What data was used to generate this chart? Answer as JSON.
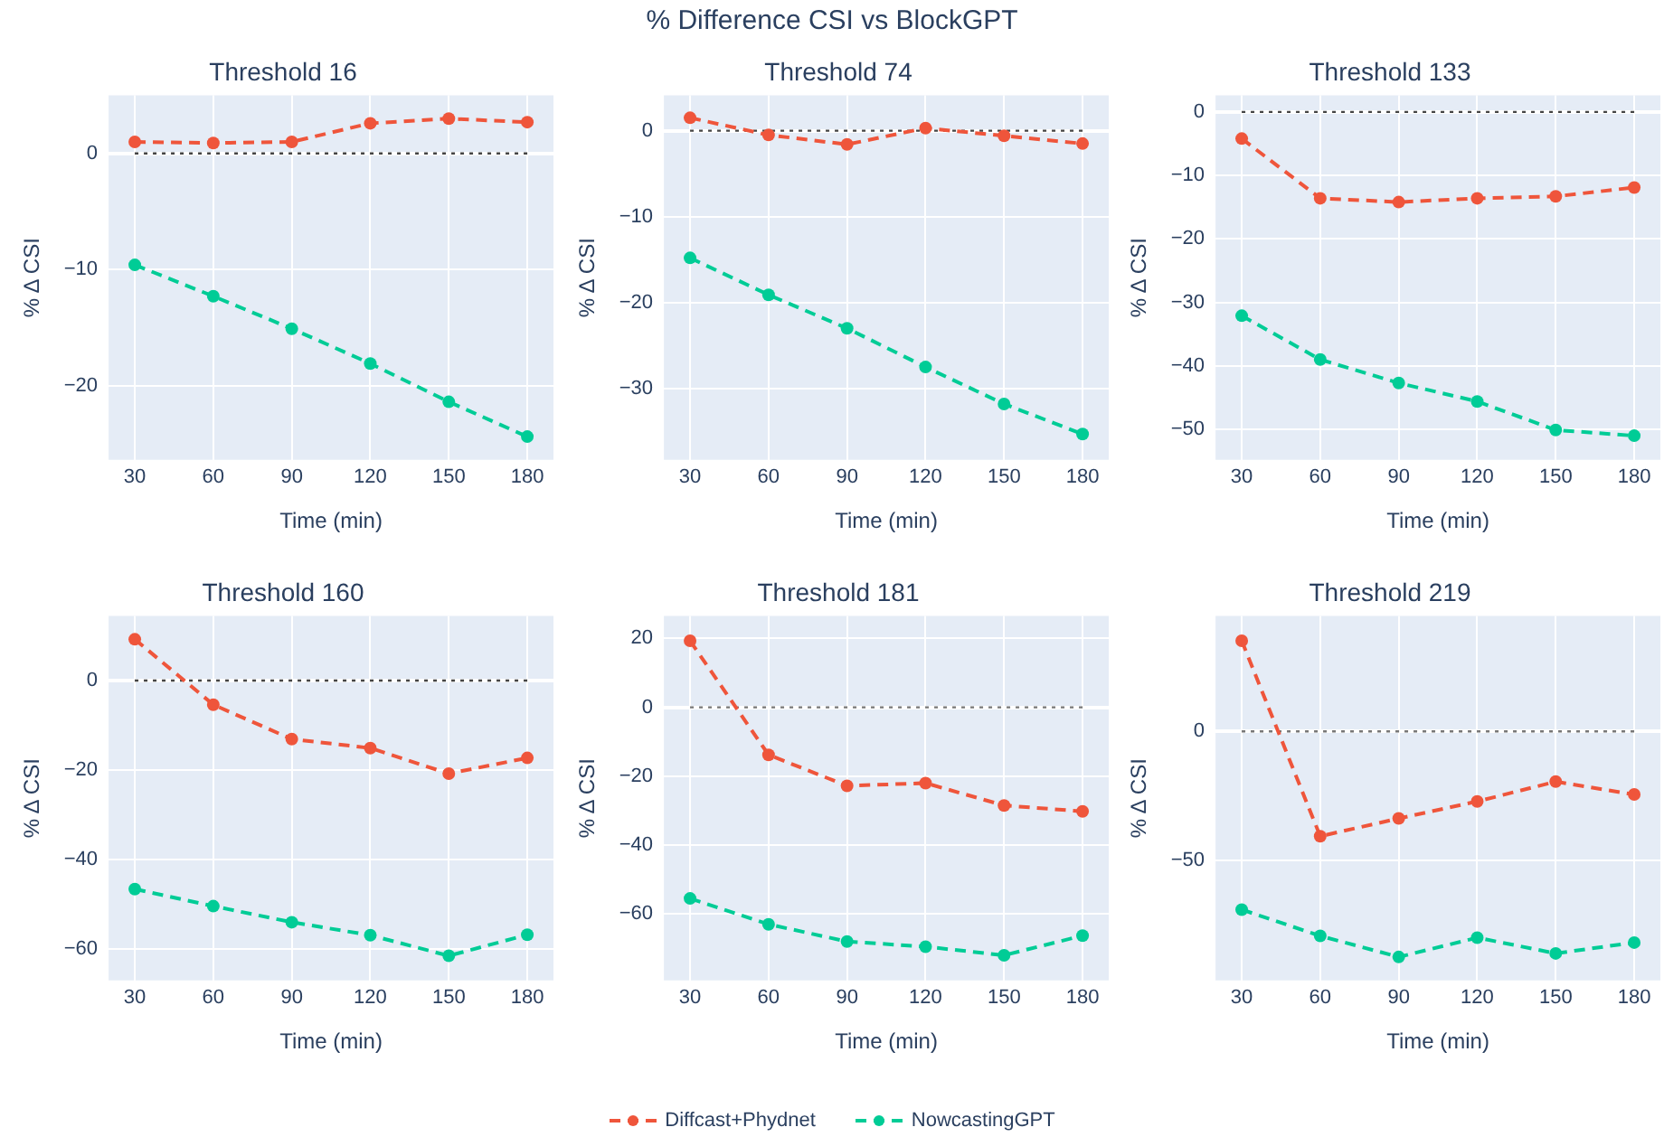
{
  "chart_data": [
    {
      "type": "line",
      "title": "Threshold 16",
      "xlabel": "Time (min)",
      "ylabel": "% Δ CSI",
      "annotations": [
        "% Difference CSI vs BlockGPT"
      ],
      "legend": "bottom",
      "marker": "circle",
      "line_style": "dashed",
      "grid": true,
      "x": [
        30,
        60,
        90,
        120,
        150,
        180
      ],
      "xlim": [
        20,
        190
      ],
      "xticks": [
        30,
        60,
        90,
        120,
        150,
        180
      ],
      "ylim": [
        -26.4,
        5
      ],
      "yticks": [
        -20,
        -10,
        0
      ],
      "ref_lines": [
        {
          "axis": "y",
          "value": 0,
          "color": "#444444",
          "line_style": "dotted"
        }
      ],
      "series": [
        {
          "name": "Diffcast+Phydnet",
          "color": "#ef553b",
          "values": [
            1.0,
            0.9,
            1.0,
            2.6,
            3.0,
            2.7
          ]
        },
        {
          "name": "NowcastingGPT",
          "color": "#00cc96",
          "values": [
            -9.6,
            -12.3,
            -15.1,
            -18.1,
            -21.4,
            -24.4
          ]
        }
      ]
    },
    {
      "type": "line",
      "title": "Threshold 74",
      "xlabel": "Time (min)",
      "ylabel": "% Δ CSI",
      "marker": "circle",
      "line_style": "dashed",
      "grid": true,
      "x": [
        30,
        60,
        90,
        120,
        150,
        180
      ],
      "xlim": [
        20,
        190
      ],
      "xticks": [
        30,
        60,
        90,
        120,
        150,
        180
      ],
      "ylim": [
        -38.3,
        4.1
      ],
      "yticks": [
        -30,
        -20,
        -10,
        0
      ],
      "ref_lines": [
        {
          "axis": "y",
          "value": 0,
          "color": "#444444",
          "line_style": "dotted"
        }
      ],
      "series": [
        {
          "color": "#ef553b",
          "values": [
            1.5,
            -0.5,
            -1.6,
            0.3,
            -0.6,
            -1.5
          ]
        },
        {
          "color": "#00cc96",
          "values": [
            -14.8,
            -19.1,
            -23.0,
            -27.5,
            -31.8,
            -35.3
          ]
        }
      ]
    },
    {
      "type": "line",
      "title": "Threshold 133",
      "xlabel": "Time (min)",
      "ylabel": "% Δ CSI",
      "marker": "circle",
      "line_style": "dashed",
      "grid": true,
      "x": [
        30,
        60,
        90,
        120,
        150,
        180
      ],
      "xlim": [
        20,
        190
      ],
      "xticks": [
        30,
        60,
        90,
        120,
        150,
        180
      ],
      "ylim": [
        -54.8,
        2.6
      ],
      "yticks": [
        -50,
        -40,
        -30,
        -20,
        -10,
        0
      ],
      "ref_lines": [
        {
          "axis": "y",
          "value": 0,
          "color": "#444444",
          "line_style": "dotted"
        }
      ],
      "series": [
        {
          "color": "#ef553b",
          "values": [
            -4.2,
            -13.6,
            -14.2,
            -13.6,
            -13.3,
            -11.9
          ]
        },
        {
          "color": "#00cc96",
          "values": [
            -32.1,
            -39.0,
            -42.7,
            -45.6,
            -50.1,
            -51.0
          ]
        }
      ]
    },
    {
      "type": "line",
      "title": "Threshold 160",
      "xlabel": "Time (min)",
      "ylabel": "% Δ CSI",
      "marker": "circle",
      "line_style": "dashed",
      "grid": true,
      "x": [
        30,
        60,
        90,
        120,
        150,
        180
      ],
      "xlim": [
        20,
        190
      ],
      "xticks": [
        30,
        60,
        90,
        120,
        150,
        180
      ],
      "ylim": [
        -67,
        14.4
      ],
      "yticks": [
        -60,
        -40,
        -20,
        0
      ],
      "ref_lines": [
        {
          "axis": "y",
          "value": 0,
          "color": "#444444",
          "line_style": "dotted"
        }
      ],
      "series": [
        {
          "color": "#ef553b",
          "values": [
            9.2,
            -5.4,
            -13.1,
            -15.1,
            -20.8,
            -17.3
          ]
        },
        {
          "color": "#00cc96",
          "values": [
            -46.6,
            -50.4,
            -54.0,
            -56.9,
            -61.5,
            -56.8
          ]
        }
      ]
    },
    {
      "type": "line",
      "title": "Threshold 181",
      "xlabel": "Time (min)",
      "ylabel": "% Δ CSI",
      "marker": "circle",
      "line_style": "dashed",
      "grid": true,
      "x": [
        30,
        60,
        90,
        120,
        150,
        180
      ],
      "xlim": [
        20,
        190
      ],
      "xticks": [
        30,
        60,
        90,
        120,
        150,
        180
      ],
      "ylim": [
        -79.3,
        26.5
      ],
      "yticks": [
        -60,
        -40,
        -20,
        0,
        20
      ],
      "ref_lines": [
        {
          "axis": "y",
          "value": 0,
          "color": "#777777",
          "line_style": "dotted"
        }
      ],
      "series": [
        {
          "color": "#ef553b",
          "values": [
            19.3,
            -13.8,
            -22.8,
            -22.0,
            -28.5,
            -30.2
          ]
        },
        {
          "color": "#00cc96",
          "values": [
            -55.5,
            -63.0,
            -68.0,
            -69.5,
            -72.0,
            -66.3
          ]
        }
      ]
    },
    {
      "type": "line",
      "title": "Threshold 219",
      "xlabel": "Time (min)",
      "ylabel": "% Δ CSI",
      "marker": "circle",
      "line_style": "dashed",
      "grid": true,
      "x": [
        30,
        60,
        90,
        120,
        150,
        180
      ],
      "xlim": [
        20,
        190
      ],
      "xticks": [
        30,
        60,
        90,
        120,
        150,
        180
      ],
      "ylim": [
        -96.7,
        44.8
      ],
      "yticks": [
        -50,
        0
      ],
      "ref_lines": [
        {
          "axis": "y",
          "value": 0,
          "color": "#777777",
          "line_style": "dotted"
        }
      ],
      "series": [
        {
          "color": "#ef553b",
          "values": [
            35.2,
            -40.7,
            -33.8,
            -27.2,
            -19.5,
            -24.5
          ]
        },
        {
          "color": "#00cc96",
          "values": [
            -69.2,
            -79.4,
            -87.6,
            -80.1,
            -86.2,
            -82.0
          ]
        }
      ]
    }
  ]
}
